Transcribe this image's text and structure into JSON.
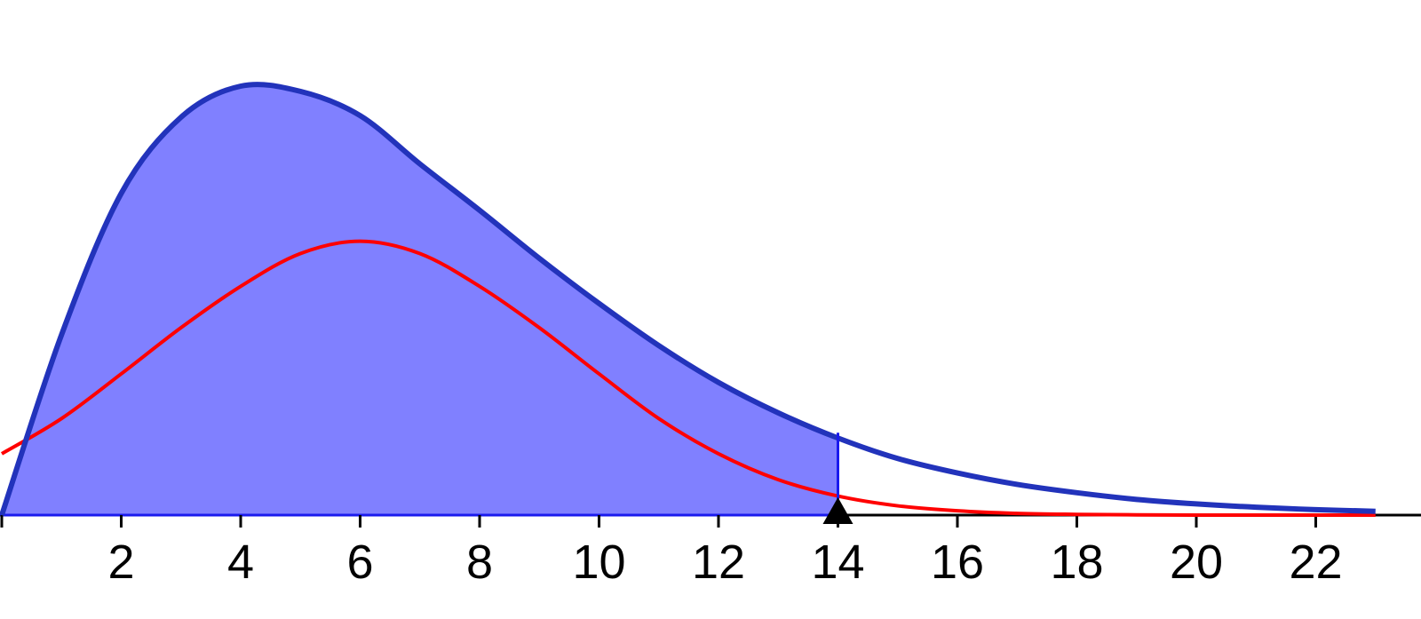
{
  "chart_data": {
    "type": "line",
    "title": "",
    "xlabel": "",
    "ylabel": "",
    "xlim": [
      0,
      23.3
    ],
    "x_ticks": [
      0,
      2,
      4,
      6,
      8,
      10,
      12,
      14,
      16,
      18,
      20,
      22
    ],
    "x_tick_labels": [
      "",
      "2",
      "4",
      "6",
      "8",
      "10",
      "12",
      "14",
      "16",
      "18",
      "20",
      "22"
    ],
    "grid": false,
    "legend": "none",
    "series": [
      {
        "kind": "chi-square density",
        "df": 6,
        "color": "#2233bb",
        "fill_color": "#8080ff",
        "shaded_range": [
          0,
          14
        ],
        "x": [
          0,
          1,
          2,
          3,
          4,
          5,
          6,
          7,
          8,
          9,
          10,
          11,
          12,
          13,
          14,
          15,
          16,
          17,
          18,
          19,
          20,
          21,
          22,
          23
        ],
        "y": [
          0,
          0.0758,
          0.1353,
          0.1673,
          0.1804,
          0.1782,
          0.168,
          0.1477,
          0.1282,
          0.108,
          0.089,
          0.0713,
          0.0558,
          0.043,
          0.0324,
          0.0238,
          0.0177,
          0.0129,
          0.0094,
          0.0066,
          0.0047,
          0.0033,
          0.0023,
          0.0016
        ]
      },
      {
        "kind": "normal density",
        "mean": 6,
        "sd": 3.464,
        "color": "#ff0000",
        "x": [
          0,
          1,
          2,
          3,
          4,
          5,
          6,
          7,
          8,
          9,
          10,
          11,
          12,
          13,
          14,
          15,
          16,
          17,
          18,
          19,
          20,
          21,
          22,
          23
        ],
        "y": [
          0.0258,
          0.0406,
          0.0594,
          0.0788,
          0.0962,
          0.11,
          0.1152,
          0.11,
          0.0962,
          0.0788,
          0.0594,
          0.0406,
          0.0258,
          0.0149,
          0.008,
          0.0039,
          0.0018,
          0.0007,
          0.0003,
          0.0001,
          0,
          0,
          0,
          0
        ]
      }
    ],
    "marker": {
      "shape": "triangle",
      "x": 14,
      "color": "#000000"
    }
  }
}
